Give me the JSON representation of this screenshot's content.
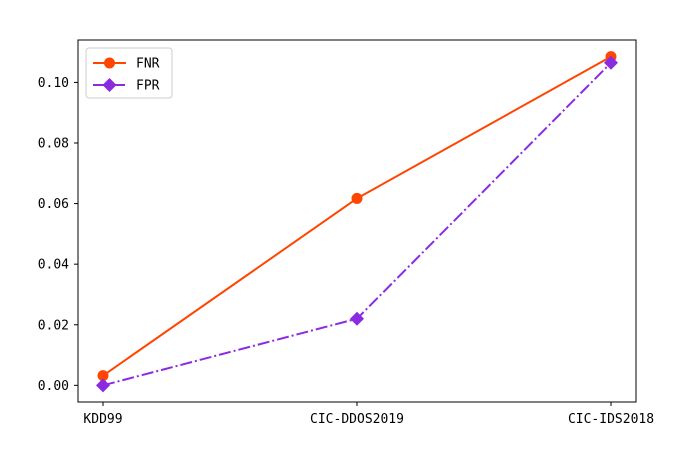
{
  "chart_data": {
    "type": "line",
    "categories": [
      "KDD99",
      "CIC-DDOS2019",
      "CIC-IDS2018"
    ],
    "series": [
      {
        "name": "FNR",
        "values": [
          0.0032,
          0.0617,
          0.1085
        ],
        "color": "#ff4500",
        "marker": "circle",
        "line_style": "solid"
      },
      {
        "name": "FPR",
        "values": [
          0.0,
          0.022,
          0.1065
        ],
        "color": "#8a2be2",
        "marker": "diamond",
        "line_style": "dash-dot"
      }
    ],
    "yticks": [
      "0.00",
      "0.02",
      "0.04",
      "0.06",
      "0.08",
      "0.10"
    ],
    "ylim": [
      -0.0055,
      0.114
    ],
    "grid": false,
    "legend_position": "top-left"
  }
}
